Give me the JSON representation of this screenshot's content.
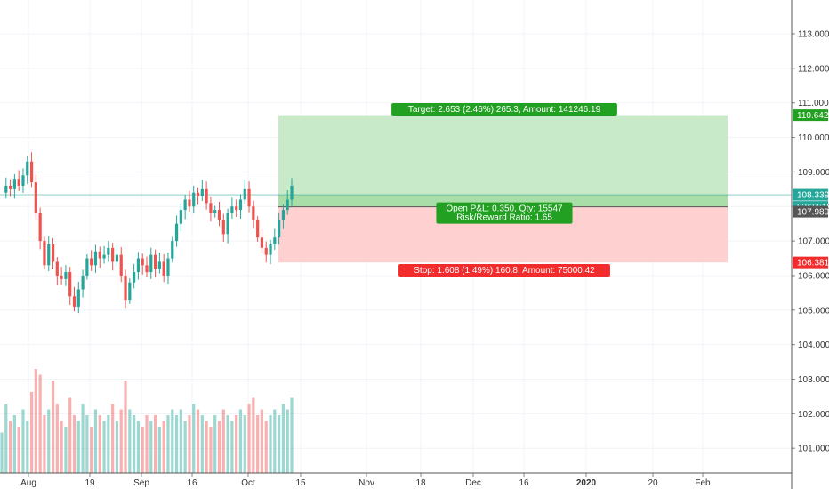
{
  "chart_data": {
    "type": "candlestick",
    "y_ticks": [
      "113.000",
      "112.000",
      "111.000",
      "110.000",
      "109.000",
      "108.000",
      "107.000",
      "106.000",
      "105.000",
      "104.000",
      "103.000",
      "102.000",
      "101.000"
    ],
    "x_ticks": [
      {
        "label": "Aug",
        "bold": false
      },
      {
        "label": "19",
        "bold": false
      },
      {
        "label": "Sep",
        "bold": false
      },
      {
        "label": "16",
        "bold": false
      },
      {
        "label": "Oct",
        "bold": false
      },
      {
        "label": "15",
        "bold": false
      },
      {
        "label": "Nov",
        "bold": false
      },
      {
        "label": "18",
        "bold": false
      },
      {
        "label": "Dec",
        "bold": false
      },
      {
        "label": "16",
        "bold": false
      },
      {
        "label": "2020",
        "bold": true
      },
      {
        "label": "20",
        "bold": false
      },
      {
        "label": "Feb",
        "bold": false
      }
    ],
    "ylim": [
      100.5,
      113.8
    ],
    "grid": true,
    "price_path": [
      108.4,
      108.6,
      108.5,
      108.8,
      108.6,
      108.9,
      109.3,
      108.7,
      107.8,
      107.0,
      106.3,
      106.9,
      106.4,
      106.0,
      105.9,
      106.1,
      105.4,
      105.1,
      105.6,
      106.0,
      106.5,
      106.3,
      106.7,
      106.5,
      106.6,
      106.8,
      106.4,
      106.6,
      106.0,
      105.3,
      105.8,
      106.1,
      106.5,
      106.3,
      106.1,
      106.6,
      106.2,
      106.4,
      106.0,
      106.5,
      107.0,
      107.5,
      107.9,
      108.2,
      108.0,
      108.4,
      108.3,
      108.5,
      108.1,
      107.8,
      107.9,
      107.6,
      107.2,
      107.8,
      108.0,
      107.9,
      108.2,
      108.5,
      108.0,
      107.6,
      107.1,
      106.8,
      106.6,
      106.9,
      107.1,
      107.6,
      107.9,
      108.2,
      108.6
    ],
    "volumes": [
      0.35,
      0.6,
      0.45,
      0.5,
      0.4,
      0.55,
      0.45,
      0.7,
      0.9,
      0.85,
      0.5,
      0.55,
      0.8,
      0.6,
      0.45,
      0.4,
      0.65,
      0.5,
      0.45,
      0.6,
      0.5,
      0.4,
      0.55,
      0.5,
      0.45,
      0.5,
      0.6,
      0.45,
      0.55,
      0.8,
      0.55,
      0.5,
      0.45,
      0.4,
      0.5,
      0.45,
      0.5,
      0.4,
      0.45,
      0.5,
      0.55,
      0.5,
      0.55,
      0.45,
      0.5,
      0.6,
      0.55,
      0.5,
      0.45,
      0.4,
      0.5,
      0.45,
      0.55,
      0.5,
      0.45,
      0.5,
      0.55,
      0.5,
      0.6,
      0.65,
      0.5,
      0.55,
      0.45,
      0.5,
      0.55,
      0.5,
      0.6,
      0.55,
      0.65
    ],
    "price_labels": [
      {
        "value": "110.642",
        "price": 110.642,
        "color": "#21a021"
      },
      {
        "value": "108.339",
        "price": 108.339,
        "color": "#26a69a"
      },
      {
        "value": "03:34:15",
        "price": 107.99,
        "color": "#26a69a"
      },
      {
        "value": "107.989",
        "price": 107.85,
        "color": "#555555"
      },
      {
        "value": "106.381",
        "price": 106.381,
        "color": "#f22c2c"
      }
    ],
    "position": {
      "entry": 107.989,
      "target": 110.642,
      "stop": 106.381,
      "last": 108.339,
      "target_label": "Target: 2.653 (2.46%) 265.3, Amount: 141246.19",
      "pnl_line1": "Open P&L: 0.350, Qty: 15547",
      "pnl_line2": "Risk/Reward Ratio: 1.65",
      "stop_label": "Stop: 1.608 (1.49%) 160.8, Amount: 75000.42"
    },
    "colors": {
      "up": "#26a69a",
      "down": "#ef5350",
      "target_zone": "#c8eac8",
      "stop_zone": "#ffd0d0",
      "target_badge": "#21a021",
      "stop_badge": "#f22c2c"
    }
  }
}
